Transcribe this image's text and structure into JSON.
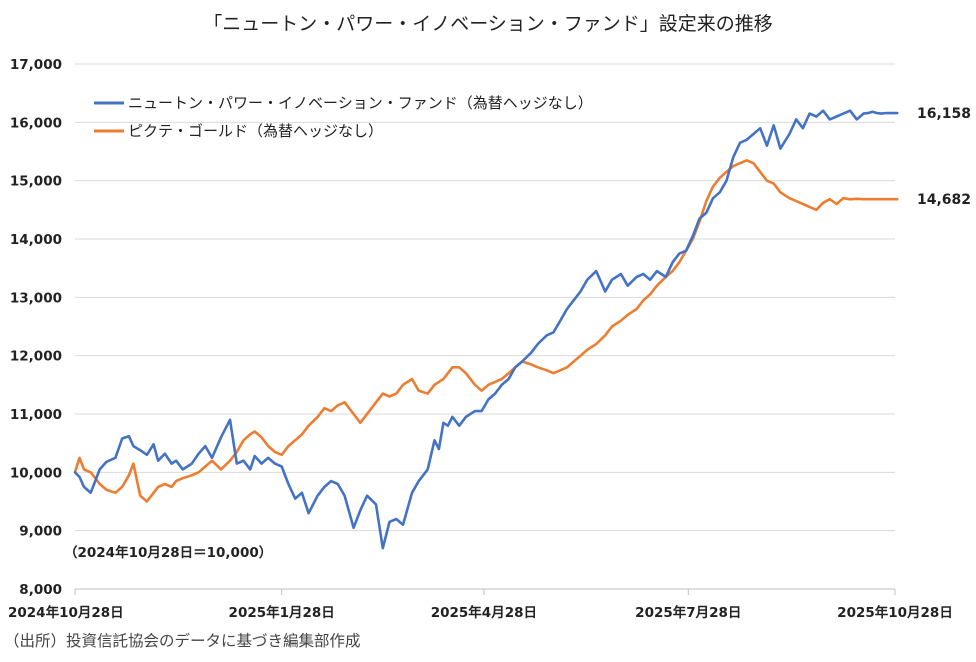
{
  "chart_data": {
    "type": "line",
    "title": "「ニュートン・パワー・イノベーション・ファンド」設定来の推移",
    "xlabel": "",
    "ylabel": "",
    "ylim": [
      8000,
      17000
    ],
    "yticks": [
      "8,000",
      "9,000",
      "10,000",
      "11,000",
      "12,000",
      "13,000",
      "14,000",
      "15,000",
      "16,000",
      "17,000"
    ],
    "ytick_values": [
      8000,
      9000,
      10000,
      11000,
      12000,
      13000,
      14000,
      15000,
      16000,
      17000
    ],
    "x_range_days": [
      0,
      365
    ],
    "xticks": [
      "2024年10月28日",
      "2025年1月28日",
      "2025年4月28日",
      "2025年7月28日",
      "2025年10月28日"
    ],
    "xtick_days": [
      0,
      92,
      182,
      273,
      365
    ],
    "grid": true,
    "legend_position": "top-left",
    "series": [
      {
        "name": "ニュートン・パワー・イノベーション・ファンド（為替ヘッジなし）",
        "color": "#4472C4",
        "end_label": "16,158",
        "x": [
          0,
          2,
          4,
          7,
          11,
          14,
          18,
          21,
          24,
          26,
          29,
          32,
          35,
          37,
          40,
          43,
          45,
          48,
          52,
          55,
          58,
          61,
          65,
          69,
          72,
          75,
          78,
          80,
          83,
          86,
          89,
          92,
          95,
          98,
          101,
          104,
          108,
          111,
          114,
          117,
          120,
          124,
          127,
          130,
          134,
          137,
          140,
          143,
          146,
          150,
          153,
          157,
          160,
          162,
          164,
          166,
          168,
          171,
          174,
          178,
          181,
          184,
          187,
          190,
          193,
          196,
          199,
          203,
          206,
          210,
          213,
          216,
          219,
          222,
          225,
          228,
          232,
          236,
          239,
          243,
          246,
          250,
          253,
          256,
          259,
          263,
          266,
          269,
          272,
          275,
          278,
          281,
          284,
          287,
          290,
          293,
          296,
          299,
          302,
          305,
          308,
          311,
          314,
          318,
          321,
          324,
          327,
          330,
          333,
          336,
          339,
          342,
          345,
          348,
          351,
          353,
          355,
          357,
          359,
          361,
          363,
          365,
          366
        ],
        "values": [
          10000,
          9920,
          9750,
          9650,
          10050,
          10180,
          10250,
          10580,
          10620,
          10450,
          10380,
          10300,
          10480,
          10200,
          10320,
          10150,
          10200,
          10050,
          10150,
          10320,
          10450,
          10250,
          10600,
          10900,
          10150,
          10200,
          10050,
          10280,
          10150,
          10250,
          10150,
          10100,
          9800,
          9550,
          9650,
          9300,
          9600,
          9750,
          9850,
          9800,
          9600,
          9050,
          9350,
          9600,
          9450,
          8700,
          9150,
          9200,
          9100,
          9650,
          9850,
          10050,
          10550,
          10400,
          10850,
          10800,
          10950,
          10800,
          10950,
          11050,
          11050,
          11250,
          11350,
          11500,
          11600,
          11800,
          11900,
          12050,
          12200,
          12350,
          12400,
          12600,
          12800,
          12950,
          13100,
          13300,
          13450,
          13100,
          13300,
          13400,
          13200,
          13350,
          13400,
          13300,
          13450,
          13350,
          13600,
          13750,
          13800,
          14050,
          14350,
          14450,
          14700,
          14800,
          15000,
          15400,
          15650,
          15700,
          15800,
          15900,
          15600,
          15950,
          15550,
          15800,
          16050,
          15900,
          16150,
          16100,
          16200,
          16050,
          16100,
          16150,
          16200,
          16050,
          16150,
          16158,
          16180,
          16158,
          16150,
          16160,
          16158,
          16158,
          16158
        ],
        "last_day": 366
      },
      {
        "name": "ピクテ・ゴールド（為替ヘッジなし）",
        "color": "#ED7D31",
        "end_label": "14,682",
        "x": [
          0,
          2,
          4,
          7,
          11,
          14,
          18,
          21,
          24,
          26,
          29,
          32,
          35,
          37,
          40,
          43,
          45,
          48,
          52,
          55,
          58,
          61,
          65,
          69,
          72,
          75,
          78,
          80,
          83,
          86,
          89,
          92,
          95,
          98,
          101,
          104,
          108,
          111,
          114,
          117,
          120,
          124,
          127,
          130,
          134,
          137,
          140,
          143,
          146,
          150,
          153,
          157,
          160,
          162,
          164,
          166,
          168,
          171,
          174,
          178,
          181,
          184,
          187,
          190,
          193,
          196,
          199,
          203,
          206,
          210,
          213,
          216,
          219,
          222,
          225,
          228,
          232,
          236,
          239,
          243,
          246,
          250,
          253,
          256,
          259,
          263,
          266,
          269,
          272,
          275,
          278,
          281,
          284,
          287,
          290,
          293,
          296,
          299,
          302,
          305,
          308,
          311,
          314,
          318,
          321,
          324,
          327,
          330,
          333,
          336,
          339,
          342,
          345,
          348,
          351,
          353,
          355,
          357,
          359,
          361,
          363,
          365,
          366
        ],
        "values": [
          10000,
          10250,
          10050,
          10000,
          9800,
          9700,
          9650,
          9750,
          9950,
          10150,
          9600,
          9500,
          9650,
          9750,
          9800,
          9750,
          9850,
          9900,
          9950,
          10000,
          10100,
          10200,
          10050,
          10200,
          10350,
          10550,
          10650,
          10700,
          10600,
          10450,
          10350,
          10300,
          10450,
          10550,
          10650,
          10800,
          10950,
          11100,
          11050,
          11150,
          11200,
          11000,
          10850,
          11000,
          11200,
          11350,
          11300,
          11350,
          11500,
          11600,
          11400,
          11350,
          11500,
          11550,
          11600,
          11700,
          11800,
          11800,
          11700,
          11500,
          11400,
          11500,
          11550,
          11600,
          11700,
          11800,
          11900,
          11850,
          11800,
          11750,
          11700,
          11750,
          11800,
          11900,
          12000,
          12100,
          12200,
          12350,
          12500,
          12600,
          12700,
          12800,
          12950,
          13050,
          13200,
          13350,
          13450,
          13600,
          13800,
          14000,
          14300,
          14650,
          14900,
          15050,
          15150,
          15250,
          15300,
          15350,
          15300,
          15150,
          15000,
          14950,
          14800,
          14700,
          14650,
          14600,
          14550,
          14500,
          14620,
          14682,
          14600,
          14700,
          14680,
          14690,
          14682,
          14682,
          14682,
          14682,
          14682,
          14682,
          14682,
          14682,
          14682
        ],
        "last_day": 366
      }
    ],
    "note": "（2024年10月28日＝10,000）"
  },
  "source": "（出所）投資信託協会のデータに基づき編集部作成"
}
